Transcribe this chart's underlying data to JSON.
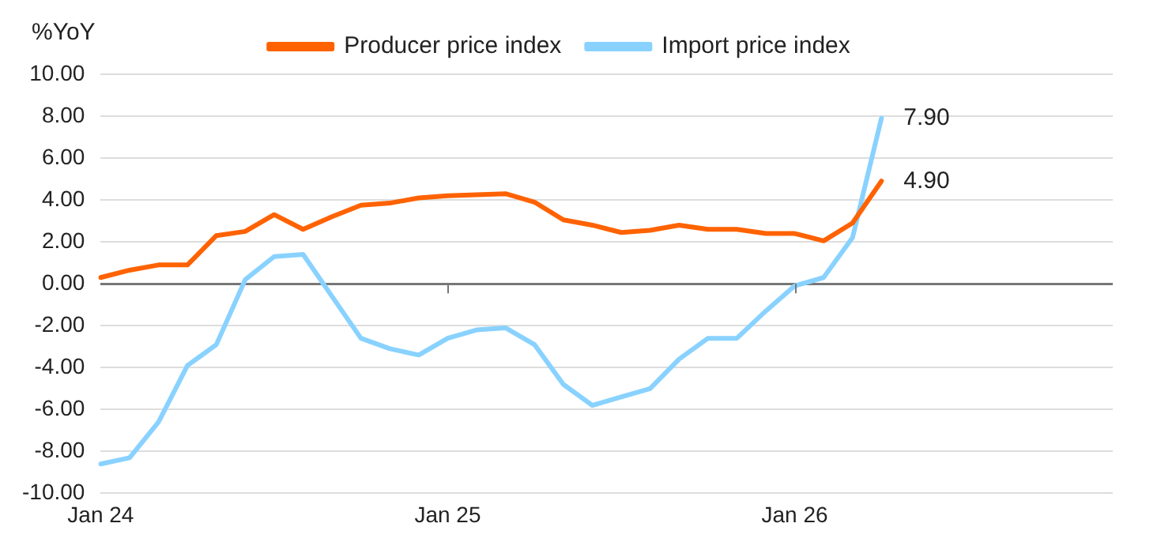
{
  "chart_data": {
    "type": "line",
    "ylabel": "%YoY",
    "categories": [
      "Jan 24",
      null,
      null,
      null,
      null,
      null,
      null,
      null,
      null,
      null,
      null,
      null,
      "Jan 25",
      null,
      null,
      null,
      null,
      null,
      null,
      null,
      null,
      null,
      null,
      null,
      "Jan 26",
      null,
      null,
      null,
      null,
      null,
      null,
      null,
      null,
      null,
      null,
      null
    ],
    "series": [
      {
        "name": "Producer price index",
        "color": "#ff6200",
        "values": [
          0.3,
          0.65,
          0.9,
          0.9,
          2.3,
          2.5,
          3.3,
          2.6,
          3.2,
          3.75,
          3.85,
          4.1,
          4.2,
          4.25,
          4.3,
          3.9,
          3.05,
          2.8,
          2.45,
          2.55,
          2.8,
          2.6,
          2.6,
          2.4,
          2.4,
          2.05,
          2.9,
          4.9,
          null,
          null,
          null,
          null,
          null,
          null,
          null,
          null
        ],
        "value_labels": [
          null,
          null,
          null,
          null,
          null,
          null,
          null,
          null,
          null,
          null,
          null,
          null,
          null,
          null,
          null,
          null,
          null,
          null,
          null,
          null,
          null,
          null,
          null,
          null,
          null,
          null,
          null,
          "4.90",
          null,
          null,
          null,
          null,
          null,
          null,
          null,
          null
        ]
      },
      {
        "name": "Import price index",
        "color": "#89d2ff",
        "values": [
          -8.6,
          -8.3,
          -6.6,
          -3.9,
          -2.9,
          0.2,
          1.3,
          1.4,
          -0.6,
          -2.6,
          -3.1,
          -3.4,
          -2.6,
          -2.2,
          -2.1,
          -2.9,
          -4.8,
          -5.8,
          -5.4,
          -5.0,
          -3.6,
          -2.6,
          -2.6,
          -1.3,
          -0.1,
          0.3,
          2.2,
          7.9,
          null,
          null,
          null,
          null,
          null,
          null,
          null,
          null
        ],
        "value_labels": [
          null,
          null,
          null,
          null,
          null,
          null,
          null,
          null,
          null,
          null,
          null,
          null,
          null,
          null,
          null,
          null,
          null,
          null,
          null,
          null,
          null,
          null,
          null,
          null,
          null,
          null,
          null,
          "7.90",
          null,
          null,
          null,
          null,
          null,
          null,
          null,
          null
        ]
      }
    ],
    "ylim": [
      -10,
      10
    ],
    "yticks": [
      {
        "value": -10,
        "label": "-10.00"
      },
      {
        "value": -8,
        "label": "-8.00"
      },
      {
        "value": -6,
        "label": "-6.00"
      },
      {
        "value": -4,
        "label": "-4.00"
      },
      {
        "value": -2,
        "label": "-2.00"
      },
      {
        "value": 0,
        "label": "0.00"
      },
      {
        "value": 2,
        "label": "2.00"
      },
      {
        "value": 4,
        "label": "4.00"
      },
      {
        "value": 6,
        "label": "6.00"
      },
      {
        "value": 8,
        "label": "8.00"
      },
      {
        "value": 10,
        "label": "10.00"
      }
    ],
    "grid": "y",
    "legend": "top",
    "marker": "none",
    "line_style": "solid"
  }
}
